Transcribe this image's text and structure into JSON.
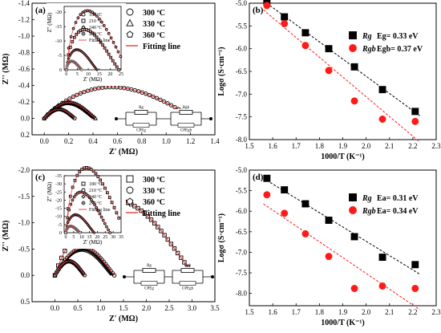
{
  "chart_data": [
    {
      "type": "scatter",
      "panel": "(a)",
      "xlabel": "Z' (MΩ)",
      "ylabel": "Z'' (MΩ)",
      "xlim": [
        -0.1,
        1.4
      ],
      "ylim": [
        0.2,
        -1.4
      ],
      "xticks": [
        "0.0",
        "0.2",
        "0.4",
        "0.6",
        "0.8",
        "1.0",
        "1.2",
        "1.4"
      ],
      "yticks": [
        "0.2",
        "0.0",
        "-0.2",
        "-0.4",
        "-0.6",
        "-0.8",
        "-1.0",
        "-1.2",
        "-1.4"
      ],
      "legend": [
        "300 ºC",
        "330 ºC",
        "360 ºC",
        "Fitting line"
      ],
      "legend_markers": [
        "circle",
        "triangle",
        "pentagon",
        "line"
      ],
      "series": [
        {
          "name": "300 ºC",
          "marker": "circle",
          "arc": {
            "x_start": 0.0,
            "x_end": 1.25,
            "peak_x": 0.6,
            "peak_y": -0.38
          }
        },
        {
          "name": "330 ºC",
          "marker": "triangle",
          "arc": {
            "x_start": 0.0,
            "x_end": 0.42,
            "peak_x": 0.2,
            "peak_y": -0.19
          }
        },
        {
          "name": "360 ºC",
          "marker": "pentagon",
          "arc": {
            "x_start": 0.0,
            "x_end": 0.25,
            "peak_x": 0.12,
            "peak_y": -0.11
          }
        }
      ],
      "circuit": [
        "Rg",
        "CPEg",
        "Rgb",
        "CPEgb"
      ],
      "inset": {
        "xlabel": "Z' (MΩ)",
        "ylabel": "Z'' (MΩ)",
        "xticks": [
          "0",
          "5",
          "10",
          "15",
          "20",
          "25"
        ],
        "yticks": [
          "0",
          "-5",
          "-10",
          "-15",
          "-20"
        ],
        "xlim": [
          -1,
          25
        ],
        "ylim": [
          0,
          -22
        ],
        "legend": [
          "180 ºC",
          "210 ºC",
          "240 ºC",
          "270 ºC",
          "Fitting line"
        ],
        "legend_markers": [
          "circle",
          "square",
          "diamond",
          "circle-gray",
          "line"
        ]
      }
    },
    {
      "type": "scatter",
      "panel": "(b)",
      "xlabel": "1000/T (K⁻¹)",
      "ylabel": "Logσ (S·cm⁻¹)",
      "xlim": [
        1.5,
        2.3
      ],
      "ylim": [
        -8.0,
        -5.0
      ],
      "xticks": [
        "1.5",
        "1.6",
        "1.7",
        "1.8",
        "1.9",
        "2.0",
        "2.1",
        "2.2",
        "2.3"
      ],
      "yticks": [
        "-5.0",
        "-5.5",
        "-6.0",
        "-6.5",
        "-7.0",
        "-7.5",
        "-8.0"
      ],
      "x": [
        1.575,
        1.65,
        1.74,
        1.84,
        1.95,
        2.07,
        2.21
      ],
      "series": [
        {
          "name": "Rg",
          "marker": "square",
          "color": "#000000",
          "values": [
            -4.97,
            -5.3,
            -5.65,
            -6.0,
            -6.4,
            -6.9,
            -7.38
          ],
          "annotation": "Eg= 0.33 eV"
        },
        {
          "name": "Rgb",
          "marker": "circle",
          "color": "#ff1a1a",
          "values": [
            -5.05,
            -5.45,
            -5.93,
            -6.48,
            -7.15,
            -7.55,
            -7.6
          ],
          "annotation": "Egb= 0.37 eV"
        }
      ]
    },
    {
      "type": "scatter",
      "panel": "(c)",
      "xlabel": "Z' (MΩ)",
      "ylabel": "Z'' (MΩ)",
      "xlim": [
        -0.5,
        3.5
      ],
      "ylim": [
        0.5,
        -2.0
      ],
      "xticks": [
        "0.0",
        "0.5",
        "1.0",
        "1.5",
        "2.0",
        "2.5",
        "3.0",
        "3.5"
      ],
      "yticks": [
        "0.5",
        "0.0",
        "-0.5",
        "-1.0",
        "-1.5",
        "-2.0"
      ],
      "legend": [
        "300 ºC",
        "330 ºC",
        "360 ºC",
        "Fitting line"
      ],
      "legend_markers": [
        "square",
        "circle",
        "pentagon",
        "line"
      ],
      "series": [
        {
          "name": "300 ºC",
          "marker": "square",
          "arc": {
            "x_start": 0.0,
            "x_end": 3.05,
            "peak_x": 2.2,
            "peak_y": -1.42
          }
        },
        {
          "name": "330 ºC",
          "marker": "circle",
          "arc": {
            "x_start": 0.0,
            "x_end": 1.3,
            "peak_x": 0.55,
            "peak_y": -0.52
          }
        },
        {
          "name": "360 ºC",
          "marker": "pentagon",
          "arc": {
            "x_start": 0.0,
            "x_end": 0.65,
            "peak_x": 0.3,
            "peak_y": -0.27
          }
        }
      ],
      "circuit": [
        "Rg",
        "CPEg",
        "Rgb",
        "CPEgb"
      ],
      "inset": {
        "xlabel": "Z' (MΩ)",
        "ylabel": "Z'' (MΩ)",
        "xticks": [
          "0",
          "5",
          "10",
          "15",
          "20",
          "25",
          "30",
          "35"
        ],
        "yticks": [
          "0",
          "-5",
          "-10",
          "-15",
          "-20",
          "-25",
          "-30",
          "-35"
        ],
        "xlim": [
          -1,
          35
        ],
        "ylim": [
          0,
          -35
        ],
        "legend": [
          "180 ºC",
          "210 ºC",
          "240 ºC",
          "270 ºC",
          "Fitting line"
        ],
        "legend_markers": [
          "square",
          "circle",
          "diamond",
          "circle-gray",
          "line"
        ]
      }
    },
    {
      "type": "scatter",
      "panel": "(d)",
      "xlabel": "1000/T (K⁻¹)",
      "ylabel": "Logσ (S·cm⁻¹)",
      "xlim": [
        1.5,
        2.3
      ],
      "ylim": [
        -8.3,
        -5.0
      ],
      "xticks": [
        "1.5",
        "1.6",
        "1.7",
        "1.8",
        "1.9",
        "2.0",
        "2.1",
        "2.2",
        "2.3"
      ],
      "yticks": [
        "-5.0",
        "-5.5",
        "-6.0",
        "-6.5",
        "-7.0",
        "-7.5",
        "-8.0"
      ],
      "x": [
        1.575,
        1.65,
        1.74,
        1.84,
        1.95,
        2.07,
        2.21
      ],
      "series": [
        {
          "name": "Rg",
          "marker": "square",
          "color": "#000000",
          "values": [
            -5.2,
            -5.48,
            -5.82,
            -6.22,
            -6.62,
            -7.12,
            -7.3
          ],
          "annotation": "Ea= 0.31 eV"
        },
        {
          "name": "Rgb",
          "marker": "circle",
          "color": "#ff1a1a",
          "values": [
            -5.6,
            -6.05,
            -6.55,
            -7.1,
            -7.88,
            -7.82,
            -7.88
          ],
          "annotation": "Ea= 0.34 eV"
        }
      ]
    }
  ]
}
